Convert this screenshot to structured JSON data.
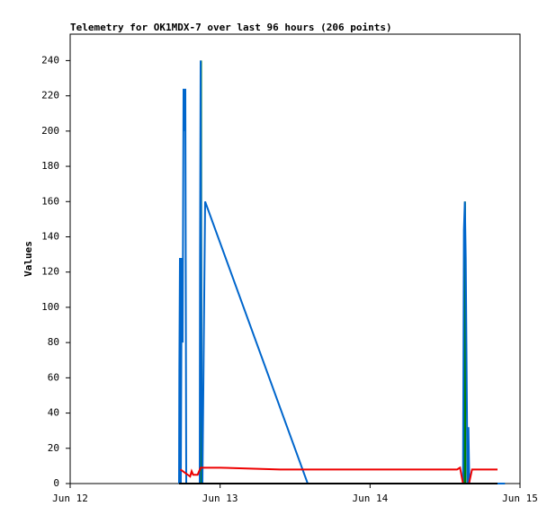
{
  "chart_data": {
    "type": "line",
    "title": "Telemetry for OK1MDX-7 over last 96 hours (206 points)",
    "y_label": "Values",
    "xlim": [
      0,
      3
    ],
    "xticks": [
      {
        "value": 0,
        "label": "Jun 12"
      },
      {
        "value": 1,
        "label": "Jun 13"
      },
      {
        "value": 2,
        "label": "Jun 14"
      },
      {
        "value": 3,
        "label": "Jun 15"
      }
    ],
    "ylim": [
      0,
      255
    ],
    "yticks": [
      0,
      20,
      40,
      60,
      80,
      100,
      120,
      140,
      160,
      180,
      200,
      220,
      240
    ],
    "grid": false,
    "series": [
      {
        "color": "#008000",
        "x": [
          0.87,
          0.873,
          0.876,
          2.63,
          2.633,
          2.636
        ],
        "values": [
          0,
          240,
          0,
          0,
          160,
          0
        ]
      },
      {
        "color": "#0066cc",
        "x": [
          0.726,
          0.728,
          0.732,
          0.738,
          0.744,
          0.75,
          0.756,
          0.762,
          0.768,
          0.774,
          0.864,
          0.866,
          0.87,
          0.876,
          0.882,
          0.9,
          1.584,
          2.62,
          2.626,
          2.632,
          2.638,
          2.644,
          2.65,
          2.656,
          2.662,
          2.9
        ],
        "values": [
          0,
          64,
          128,
          0,
          128,
          80,
          224,
          200,
          224,
          0,
          0,
          128,
          240,
          48,
          0,
          160,
          0,
          0,
          144,
          160,
          128,
          64,
          0,
          32,
          0,
          0
        ]
      },
      {
        "color": "#ee0000",
        "x": [
          0.735,
          0.8,
          0.81,
          0.82,
          0.85,
          0.87,
          1.0,
          1.4,
          2.58,
          2.6,
          2.62,
          2.66,
          2.68,
          2.85
        ],
        "values": [
          8,
          4,
          7,
          5,
          5,
          9,
          9,
          8,
          8,
          9,
          0,
          0,
          8,
          8
        ]
      },
      {
        "color": "#000000",
        "x": [
          0.726,
          2.85
        ],
        "values": [
          0,
          0
        ]
      }
    ]
  }
}
